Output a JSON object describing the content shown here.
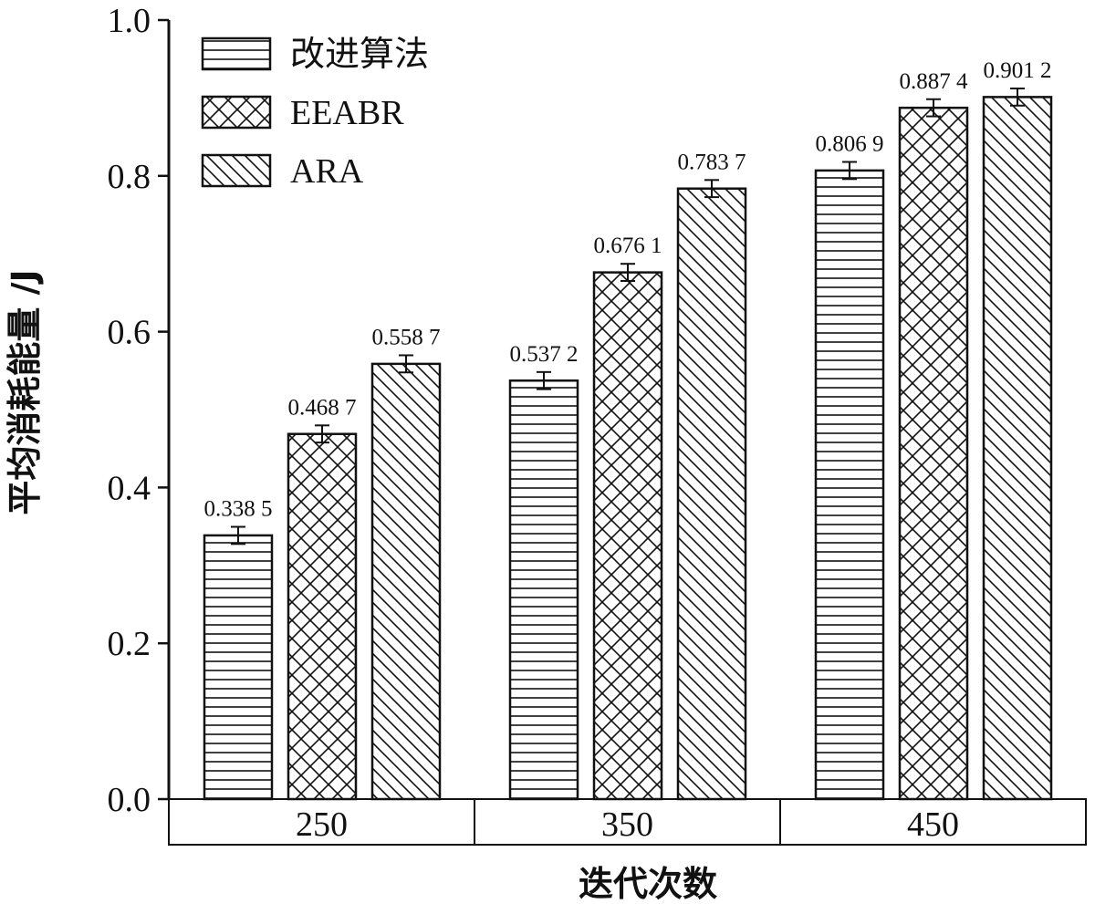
{
  "chart_data": {
    "type": "bar",
    "xlabel": "迭代次数",
    "ylabel": "平均消耗能量 /J",
    "ylim": [
      0,
      1.0
    ],
    "yticks": [
      "0.0",
      "0.2",
      "0.4",
      "0.6",
      "0.8",
      "1.0"
    ],
    "categories": [
      "250",
      "350",
      "450"
    ],
    "series": [
      {
        "name": "改进算法",
        "pattern": "horizontal-lines",
        "values": [
          0.3385,
          0.5372,
          0.8069
        ],
        "labels": [
          "0.338 5",
          "0.537 2",
          "0.806 9"
        ],
        "error": 0.011
      },
      {
        "name": "EEABR",
        "pattern": "cross-hatch",
        "values": [
          0.4687,
          0.6761,
          0.8874
        ],
        "labels": [
          "0.468 7",
          "0.676 1",
          "0.887 4"
        ],
        "error": 0.011
      },
      {
        "name": "ARA",
        "pattern": "diagonal-lines",
        "values": [
          0.5587,
          0.7837,
          0.9012
        ],
        "labels": [
          "0.558 7",
          "0.783 7",
          "0.901 2"
        ],
        "error": 0.011
      }
    ],
    "legend_position": "top-left",
    "colors": {
      "ink": "#111111",
      "background": "#ffffff"
    }
  }
}
